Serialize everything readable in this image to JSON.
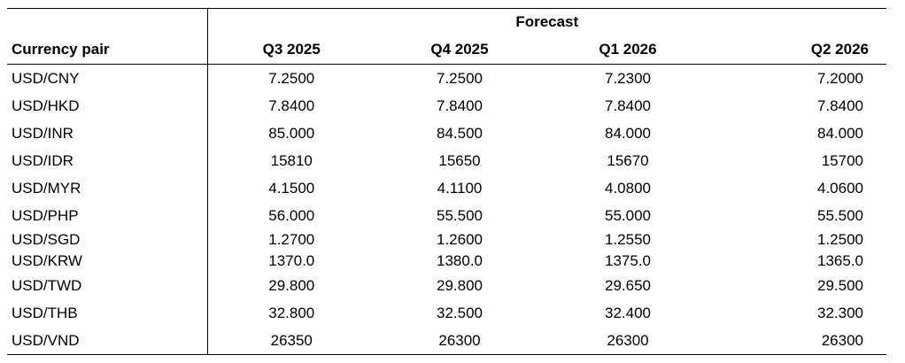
{
  "table": {
    "forecast_label": "Forecast",
    "pair_header": "Currency pair",
    "quarters": [
      "Q3 2025",
      "Q4 2025",
      "Q1 2026",
      "Q2 2026"
    ],
    "rows": [
      {
        "pair": "USD/CNY",
        "values": [
          "7.2500",
          "7.2500",
          "7.2300",
          "7.2000"
        ]
      },
      {
        "pair": "USD/HKD",
        "values": [
          "7.8400",
          "7.8400",
          "7.8400",
          "7.8400"
        ]
      },
      {
        "pair": "USD/INR",
        "values": [
          "85.000",
          "84.500",
          "84.000",
          "84.000"
        ]
      },
      {
        "pair": "USD/IDR",
        "values": [
          "15810",
          "15650",
          "15670",
          "15700"
        ]
      },
      {
        "pair": "USD/MYR",
        "values": [
          "4.1500",
          "4.1100",
          "4.0800",
          "4.0600"
        ]
      },
      {
        "pair": "USD/PHP",
        "values": [
          "56.000",
          "55.500",
          "55.000",
          "55.500"
        ]
      },
      {
        "pair": "USD/SGD",
        "values": [
          "1.2700",
          "1.2600",
          "1.2550",
          "1.2500"
        ]
      },
      {
        "pair": "USD/KRW",
        "values": [
          "1370.0",
          "1380.0",
          "1375.0",
          "1365.0"
        ]
      },
      {
        "pair": "USD/TWD",
        "values": [
          "29.800",
          "29.800",
          "29.650",
          "29.500"
        ]
      },
      {
        "pair": "USD/THB",
        "values": [
          "32.800",
          "32.500",
          "32.400",
          "32.300"
        ]
      },
      {
        "pair": "USD/VND",
        "values": [
          "26350",
          "26300",
          "26300",
          "26300"
        ]
      }
    ]
  }
}
